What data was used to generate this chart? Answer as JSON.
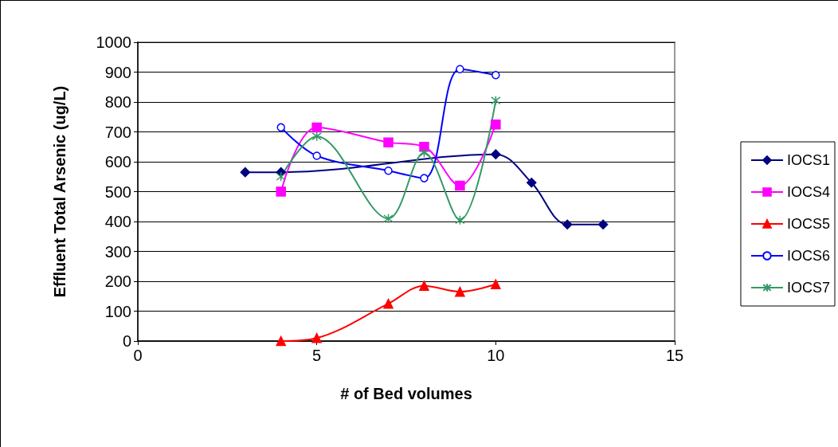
{
  "chart_data": {
    "type": "line",
    "xlabel": "# of Bed volumes",
    "ylabel": "Effluent Total Arsenic (ug/L)",
    "xlim": [
      0,
      15
    ],
    "xticks": [
      0,
      5,
      10,
      15
    ],
    "ylim": [
      0,
      1000
    ],
    "yticks": [
      0,
      100,
      200,
      300,
      400,
      500,
      600,
      700,
      800,
      900,
      1000
    ],
    "grid": "y",
    "legend": "right",
    "series": [
      {
        "name": "IOCS1",
        "color": "#000080",
        "marker": "diamond",
        "x": [
          3,
          4,
          10,
          11,
          12,
          13
        ],
        "values": [
          565,
          565,
          625,
          530,
          390,
          390
        ]
      },
      {
        "name": "IOCS4",
        "color": "#ff00ff",
        "marker": "square",
        "x": [
          4,
          5,
          7,
          8,
          9,
          10
        ],
        "values": [
          500,
          715,
          665,
          650,
          520,
          725
        ]
      },
      {
        "name": "IOCS5",
        "color": "#ff0000",
        "marker": "triangle",
        "x": [
          4,
          5,
          7,
          8,
          9,
          10
        ],
        "values": [
          0,
          10,
          125,
          185,
          165,
          190
        ]
      },
      {
        "name": "IOCS6",
        "color": "#0000ff",
        "marker": "circle",
        "x": [
          4,
          5,
          7,
          8,
          9,
          10
        ],
        "values": [
          715,
          620,
          570,
          545,
          910,
          890
        ]
      },
      {
        "name": "IOCS7",
        "color": "#339966",
        "marker": "cross",
        "x": [
          4,
          5,
          7,
          8,
          9,
          10
        ],
        "values": [
          550,
          685,
          410,
          630,
          405,
          805
        ]
      }
    ]
  }
}
